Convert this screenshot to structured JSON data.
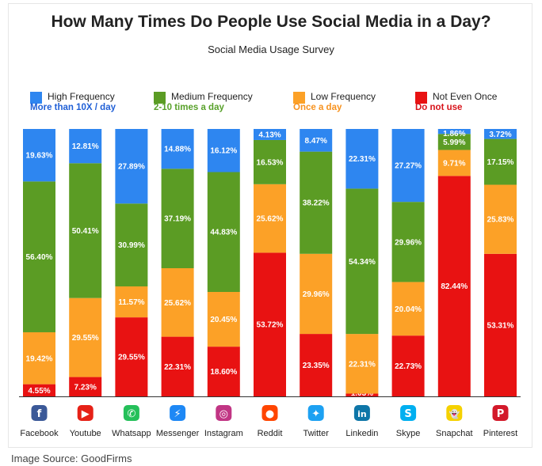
{
  "chart_data": {
    "type": "bar",
    "stacked": true,
    "title": "How Many Times Do People Use Social Media in a Day?",
    "subtitle": "Social Media Usage Survey",
    "categories": [
      "Facebook",
      "Youtube",
      "Whatsapp",
      "Messenger",
      "Instagram",
      "Reddit",
      "Twitter",
      "Linkedin",
      "Skype",
      "Snapchat",
      "Pinterest"
    ],
    "series": [
      {
        "name": "Not Even Once",
        "sub": "Do not use",
        "color": "#e81212",
        "subcolor": "#d8131a",
        "values": [
          4.55,
          7.23,
          29.55,
          22.31,
          18.6,
          53.72,
          23.35,
          1.03,
          22.73,
          82.44,
          53.31
        ],
        "labels": [
          "4.55%",
          "7.23%",
          "29.55%",
          "22.31%",
          "18.60%",
          "53.72%",
          "23.35%",
          "1.03%",
          "22.73%",
          "82.44%",
          "53.31%"
        ]
      },
      {
        "name": "Low Frequency",
        "sub": "Once a day",
        "color": "#fca127",
        "subcolor": "#f7921e",
        "values": [
          19.42,
          29.55,
          11.57,
          25.62,
          20.45,
          25.62,
          29.96,
          22.31,
          20.04,
          9.71,
          25.83
        ],
        "labels": [
          "19.42%",
          "29.55%",
          "11.57%",
          "25.62%",
          "20.45%",
          "25.62%",
          "29.96%",
          "22.31%",
          "20.04%",
          "9.71%",
          "25.83%"
        ]
      },
      {
        "name": "Medium Frequency",
        "sub": "2-10 times a day",
        "color": "#5b9c24",
        "subcolor": "#58a12a",
        "values": [
          56.4,
          50.41,
          30.99,
          37.19,
          44.83,
          16.53,
          38.22,
          54.34,
          29.96,
          5.99,
          17.15
        ],
        "labels": [
          "56.40%",
          "50.41%",
          "30.99%",
          "37.19%",
          "44.83%",
          "16.53%",
          "38.22%",
          "54.34%",
          "29.96%",
          "5.99%",
          "17.15%"
        ]
      },
      {
        "name": "High Frequency",
        "sub": "More than 10X / day",
        "color": "#2e86f0",
        "subcolor": "#1f5fd6",
        "values": [
          19.63,
          12.81,
          27.89,
          14.88,
          16.12,
          4.13,
          8.47,
          22.31,
          27.27,
          1.86,
          3.72
        ],
        "labels": [
          "19.63%",
          "12.81%",
          "27.89%",
          "14.88%",
          "16.12%",
          "4.13%",
          "8.47%",
          "22.31%",
          "27.27%",
          "1.86%",
          "3.72%"
        ]
      }
    ],
    "legend_order": [
      "High Frequency",
      "Medium Frequency",
      "Low Frequency",
      "Not Even Once"
    ],
    "ylim": [
      0,
      100
    ],
    "legend_position": "top"
  },
  "icons": [
    {
      "name": "facebook-icon",
      "glyph": "f",
      "color": "#3b5998"
    },
    {
      "name": "youtube-icon",
      "glyph": "▶",
      "color": "#e62117"
    },
    {
      "name": "whatsapp-icon",
      "glyph": "✆",
      "color": "#25c05a"
    },
    {
      "name": "messenger-icon",
      "glyph": "⚡",
      "color": "#1e88f5"
    },
    {
      "name": "instagram-icon",
      "glyph": "◎",
      "color": "#c13584"
    },
    {
      "name": "reddit-icon",
      "glyph": "●",
      "color": "#ff4500"
    },
    {
      "name": "twitter-icon",
      "glyph": "✦",
      "color": "#1da1f2"
    },
    {
      "name": "linkedin-icon",
      "glyph": "in",
      "color": "#0e76a8"
    },
    {
      "name": "skype-icon",
      "glyph": "S",
      "color": "#00aff0"
    },
    {
      "name": "snapchat-icon",
      "glyph": "👻",
      "color": "#f5d100"
    },
    {
      "name": "pinterest-icon",
      "glyph": "P",
      "color": "#d3192a"
    }
  ],
  "footer": {
    "source": "Image Source: GoodFirms"
  }
}
